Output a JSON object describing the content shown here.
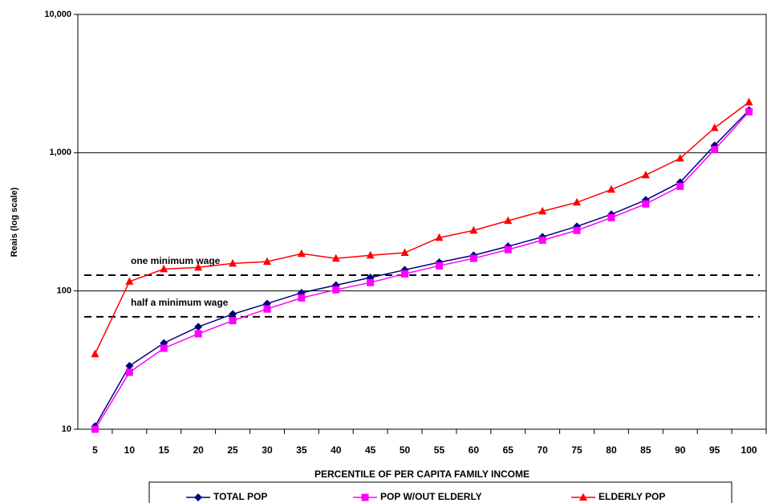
{
  "chart_data": {
    "type": "line",
    "x_label": "PERCENTILE OF PER CAPITA FAMILY INCOME",
    "y_label": "Reais (log scale)",
    "log_scale": true,
    "grid": true,
    "legend_position": "bottom",
    "categories": [
      "5",
      "10",
      "15",
      "20",
      "25",
      "30",
      "35",
      "40",
      "45",
      "50",
      "55",
      "60",
      "65",
      "70",
      "75",
      "80",
      "85",
      "90",
      "95",
      "100"
    ],
    "ylim": [
      10,
      10000
    ],
    "yticks": [
      10,
      100,
      {
        "value": 1000,
        "label": "1,000"
      },
      {
        "value": 10000,
        "label": "10,000"
      }
    ],
    "series": [
      {
        "name": "TOTAL POP",
        "color": "#000080",
        "marker": "diamond",
        "values": [
          10.5,
          28.7,
          42,
          55,
          68,
          81,
          97,
          110,
          125,
          142,
          161,
          181,
          210,
          246,
          293,
          358,
          455,
          611,
          1128,
          2030
        ]
      },
      {
        "name": "POP W/OUT ELDERLY",
        "color": "#ff00ff",
        "marker": "square",
        "values": [
          10,
          25.8,
          38.5,
          49,
          61,
          74,
          89,
          102,
          115,
          133,
          152,
          172,
          199,
          233,
          274,
          339,
          426,
          571,
          1055,
          1977
        ]
      },
      {
        "name": "ELDERLY POP",
        "color": "#ff0000",
        "marker": "triangle",
        "values": [
          35,
          117,
          144,
          148,
          158,
          163,
          186,
          172,
          181,
          189,
          243,
          274,
          322,
          377,
          437,
          541,
          689,
          910,
          1513,
          2319
        ]
      }
    ],
    "reference_lines": [
      {
        "label": "one minimum wage",
        "value": 130
      },
      {
        "label": "half a minimum wage",
        "value": 65
      }
    ]
  }
}
